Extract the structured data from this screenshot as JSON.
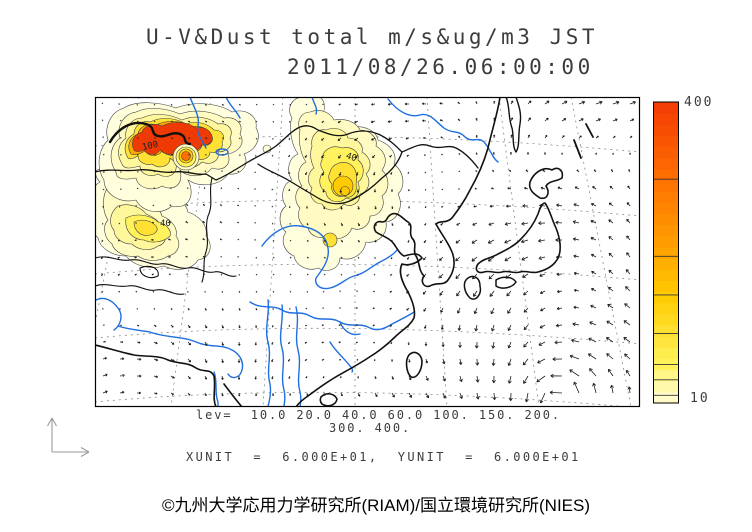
{
  "header": {
    "title_line1": "U-V&Dust total m/s&ug/m3 JST",
    "title_line2": "2011/08/26.06:00:00"
  },
  "footer": {
    "lev_line1": "lev=  10.0 20.0 40.0 60.0 100. 150. 200.",
    "lev_line2": "300. 400.",
    "units_line": "XUNIT  =  6.000E+01,  YUNIT  =  6.000E+01",
    "copyright": "©九州大学応用力学研究所(RIAM)/国立環境研究所(NIES)"
  },
  "colorbar": {
    "max_label": "400",
    "min_label": "10",
    "min_value": 10,
    "max_value": 400,
    "tick_levels": [
      20,
      40,
      60,
      100,
      150,
      200,
      300
    ],
    "segments": 27
  },
  "map": {
    "contour_labels": [
      "100",
      "40",
      "40"
    ]
  },
  "colors": {
    "river_blue": "#1e6fe0",
    "coast_black": "#111111",
    "contour_gray": "#3f3f3f",
    "graticule_gray": "#8a8a8a",
    "arrow_dark": "#1c1c1c",
    "dust_palette": {
      "10": "#FFFFDE",
      "20": "#FFFBC2",
      "40": "#FFF79B",
      "60": "#FFF25C",
      "100": "#FFE133",
      "150": "#FFCB00",
      "200": "#FFA800",
      "300": "#FF7000",
      "400": "#F23A05"
    }
  },
  "chart_data": {
    "type": "filled-contour map with wind vector field",
    "region": "East Asia (China, Mongolia, Korea, Japan, Himalayas, East China Sea)",
    "variables": "U-V wind (m/s) and total dust concentration (ug/m3)",
    "timestamp_jst": "2011/08/26.06:00:00",
    "contour_levels_ugm3": [
      10,
      20,
      40,
      60,
      100,
      150,
      200,
      300,
      400
    ],
    "colorbar_range": [
      10,
      400
    ],
    "xunit": "6.000E+01",
    "yunit": "6.000E+01",
    "dust_features": [
      {
        "location": "northwest (around 45N, Xinjiang/Kazakhstan border)",
        "peak_level": 400
      },
      {
        "location": "small spot southeast of northwest maximum",
        "peak_level": 300
      },
      {
        "location": "west plume (Tarim/Tibet northwest)",
        "peak_level": 100
      },
      {
        "location": "central (Mongolia / Gobi, north China)",
        "peak_level": 150
      }
    ],
    "wind_features": [
      {
        "feature": "cyclonic (counterclockwise) circulation near bottom-right of map, south of Japan"
      },
      {
        "feature": "northeastward flow over the Sea of Okhotsk / northeast corner"
      }
    ]
  }
}
